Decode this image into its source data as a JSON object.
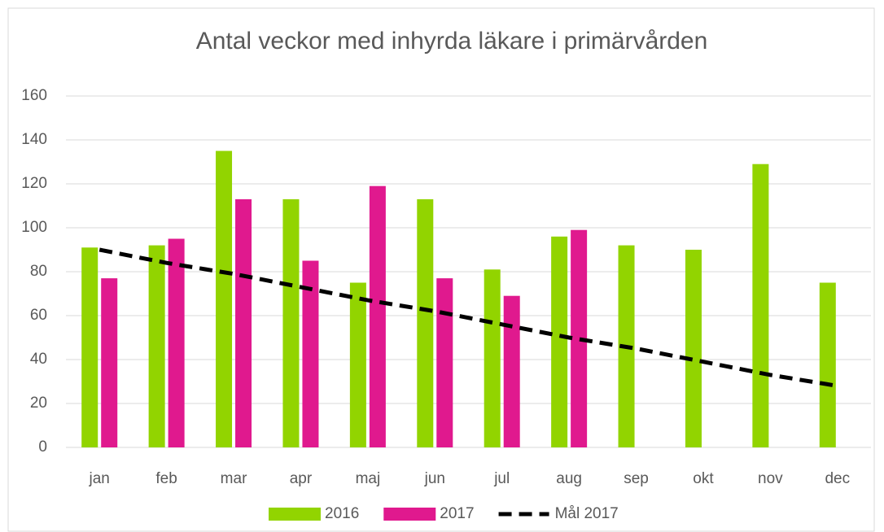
{
  "chart_data": {
    "type": "bar",
    "title": "Antal veckor med inhyrda läkare i primärvården",
    "categories": [
      "jan",
      "feb",
      "mar",
      "apr",
      "maj",
      "jun",
      "jul",
      "aug",
      "sep",
      "okt",
      "nov",
      "dec"
    ],
    "series": [
      {
        "name": "2016",
        "color": "#92d400",
        "values": [
          91,
          92,
          135,
          113,
          75,
          113,
          81,
          96,
          92,
          90,
          129,
          75
        ]
      },
      {
        "name": "2017",
        "color": "#e0198e",
        "values": [
          77,
          95,
          113,
          85,
          119,
          77,
          69,
          99,
          null,
          null,
          null,
          null
        ]
      },
      {
        "name": "Mål 2017",
        "color": "#000000",
        "type": "line",
        "dashed": true,
        "values": [
          90,
          84,
          79,
          73,
          67,
          62,
          56,
          50,
          45,
          39,
          33,
          28
        ]
      }
    ],
    "ylim": [
      0,
      160
    ],
    "yticks": [
      0,
      20,
      40,
      60,
      80,
      100,
      120,
      140,
      160
    ],
    "grid": true,
    "legend": "bottom"
  }
}
